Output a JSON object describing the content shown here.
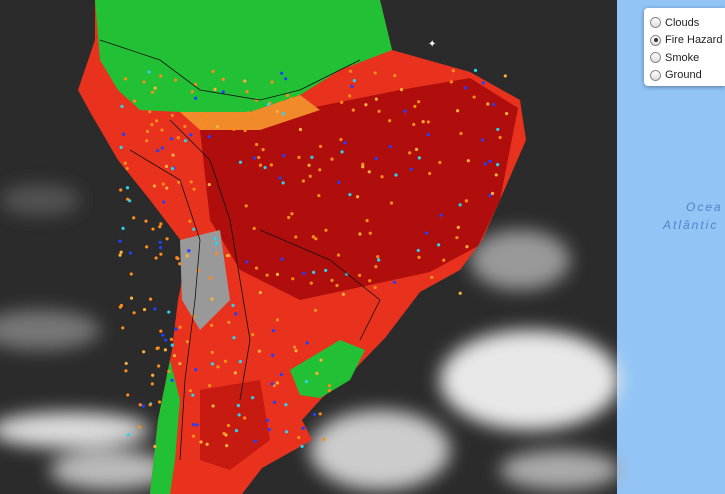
{
  "layer_control": {
    "options": [
      {
        "label": "Clouds",
        "selected": false
      },
      {
        "label": "Fire Hazard",
        "selected": true
      },
      {
        "label": "Smoke",
        "selected": false
      },
      {
        "label": "Ground",
        "selected": false
      }
    ]
  },
  "map_labels": [
    "Ocea",
    "Atlântic"
  ]
}
